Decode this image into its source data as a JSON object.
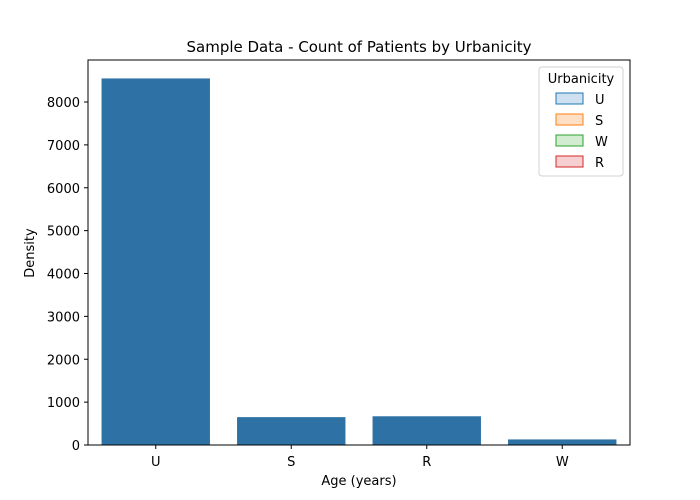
{
  "chart_data": {
    "type": "bar",
    "title": "Sample Data - Count of Patients by Urbanicity",
    "xlabel": "Age (years)",
    "ylabel": "Density",
    "categories": [
      "U",
      "S",
      "R",
      "W"
    ],
    "values": [
      8550,
      650,
      670,
      130
    ],
    "ylim": [
      0,
      8980
    ],
    "yticks": [
      0,
      1000,
      2000,
      3000,
      4000,
      5000,
      6000,
      7000,
      8000
    ],
    "bar_color": "#2e72a5",
    "grid": false,
    "legend": {
      "title": "Urbanicity",
      "position": "top-right",
      "entries": [
        {
          "label": "U",
          "fill": "#cfe0f0",
          "stroke": "#1f77b4"
        },
        {
          "label": "S",
          "fill": "#ffe0c7",
          "stroke": "#ff7f0e"
        },
        {
          "label": "W",
          "fill": "#d2ecd2",
          "stroke": "#2ca02c"
        },
        {
          "label": "R",
          "fill": "#f6d0d0",
          "stroke": "#d62728"
        }
      ]
    }
  }
}
